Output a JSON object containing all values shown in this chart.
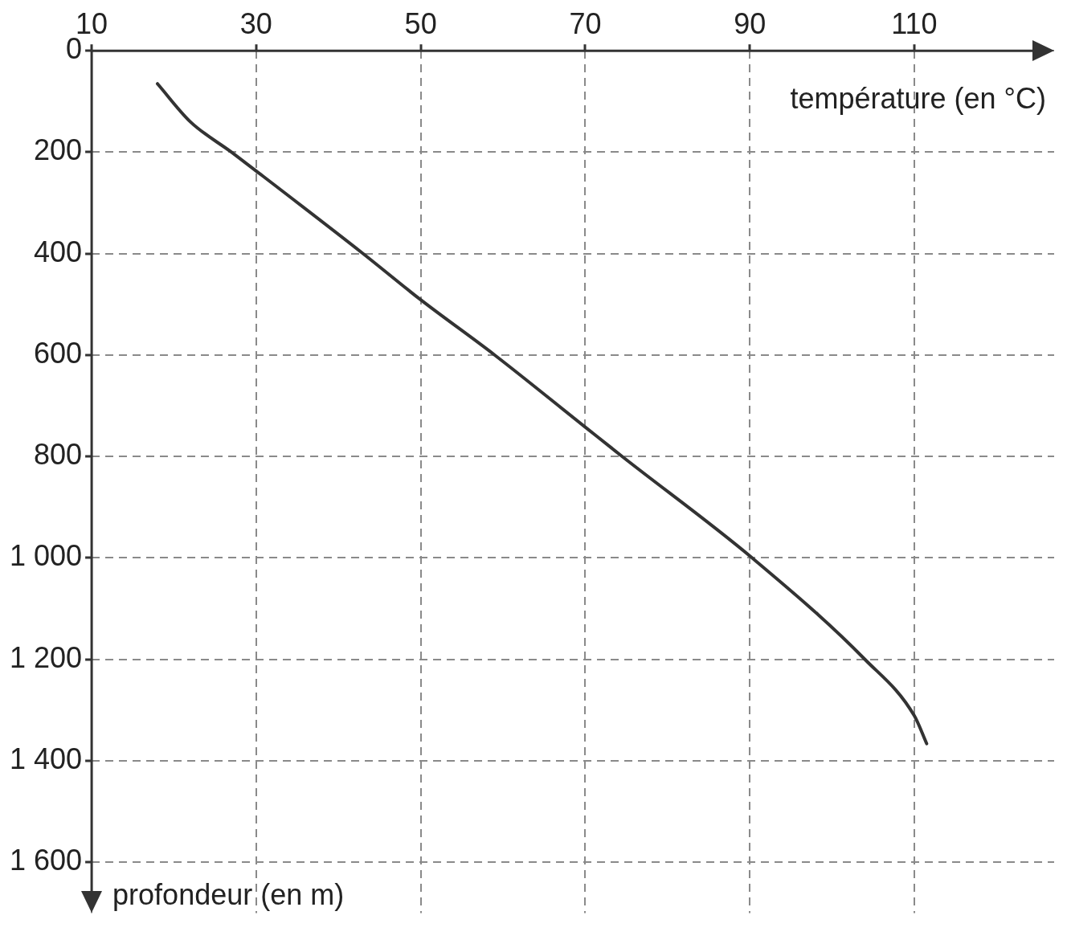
{
  "chart_data": {
    "type": "line",
    "xlabel": "température (en °C)",
    "ylabel": "profondeur (en m)",
    "x": [
      18,
      22,
      27,
      30,
      43,
      50,
      59,
      70,
      74.5,
      90.3,
      104,
      110,
      111.5
    ],
    "values": [
      65,
      140,
      200,
      237,
      400,
      491,
      600,
      742,
      800,
      1000,
      1200,
      1311,
      1366
    ],
    "color": "#333333",
    "marker": "none",
    "line_style": "solid",
    "grid": true,
    "xlim": [
      10,
      127
    ],
    "xticks": [
      10,
      30,
      50,
      70,
      90,
      110
    ],
    "ylim": [
      1700,
      0
    ],
    "yticks": [
      0,
      200,
      400,
      600,
      800,
      {
        "value": 1000,
        "label": "1 000"
      },
      {
        "value": 1200,
        "label": "1 200"
      },
      {
        "value": 1400,
        "label": "1 400"
      },
      {
        "value": 1600,
        "label": "1 600"
      }
    ]
  }
}
